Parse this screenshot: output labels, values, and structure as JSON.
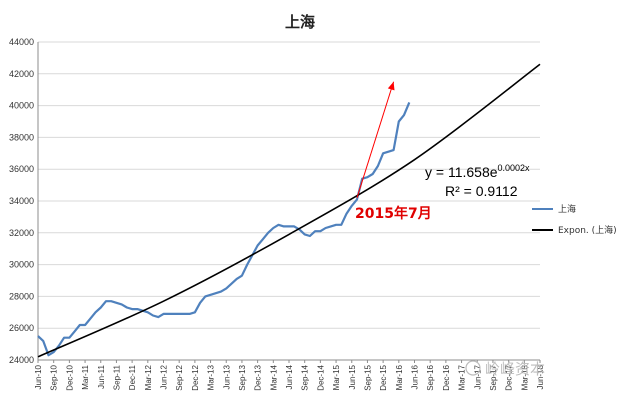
{
  "chart_data": {
    "type": "line",
    "title": "上海",
    "xlabel": "",
    "ylabel": "",
    "ylim": [
      24000,
      44000
    ],
    "yticks": [
      24000,
      26000,
      28000,
      30000,
      32000,
      34000,
      36000,
      38000,
      40000,
      42000,
      44000
    ],
    "ytick_labels": [
      "24000",
      "26000",
      "28000",
      "30000",
      "32000",
      "34000",
      "36000",
      "38000",
      "40000",
      "42000",
      "44000"
    ],
    "xtick_labels": [
      "Jun-10",
      "Sep-10",
      "Dec-10",
      "Mar-11",
      "Jun-11",
      "Sep-11",
      "Dec-11",
      "Mar-12",
      "Jun-12",
      "Sep-12",
      "Dec-12",
      "Mar-13",
      "Jun-13",
      "Sep-13",
      "Dec-13",
      "Mar-14",
      "Jun-14",
      "Sep-14",
      "Dec-14",
      "Mar-15",
      "Jun-15",
      "Sep-15",
      "Dec-15",
      "Mar-16",
      "Jun-16",
      "Sep-16",
      "Dec-16",
      "Mar-17",
      "Jun-17",
      "Sep-17",
      "Dec-17",
      "Mar-18",
      "Jun-18"
    ],
    "grid": "horizontal",
    "legend_position": "right",
    "series": [
      {
        "name": "上海",
        "color": "#4f81bd",
        "start_month_index": 0,
        "values": [
          25500,
          25200,
          24300,
          24500,
          24900,
          25400,
          25400,
          25800,
          26200,
          26200,
          26600,
          27000,
          27300,
          27700,
          27700,
          27600,
          27500,
          27300,
          27200,
          27200,
          27100,
          27000,
          26800,
          26700,
          26900,
          26900,
          26900,
          26900,
          26900,
          26900,
          27000,
          27600,
          28000,
          28100,
          28200,
          28300,
          28500,
          28800,
          29100,
          29300,
          30000,
          30600,
          31200,
          31600,
          32000,
          32300,
          32500,
          32400,
          32400,
          32400,
          32200,
          31900,
          31800,
          32100,
          32100,
          32300,
          32400,
          32500,
          32500,
          33200,
          33700,
          34100,
          35400,
          35500,
          35700,
          36200,
          37000,
          37100,
          37200,
          39000,
          39400,
          40200
        ]
      },
      {
        "name": "Expon. (上海)",
        "color": "#000000",
        "type": "trendline",
        "values_at_ticks": [
          {
            "x": "Jun-10",
            "y": 24200
          },
          {
            "x": "Jun-12",
            "y": 27700
          },
          {
            "x": "Jun-14",
            "y": 31900
          },
          {
            "x": "Jun-16",
            "y": 36600
          },
          {
            "x": "Jun-18",
            "y": 42600
          }
        ]
      }
    ],
    "annotations": {
      "equation": "y = 11.658e",
      "equation_exponent": "0.0002x",
      "r_squared": "R² = 0.9112",
      "arrow_label": "2015年7月",
      "arrow_color": "#ff0000",
      "label_color": "#ff0000",
      "arrow_from": {
        "x": "Jul-15",
        "y": 34200
      },
      "arrow_to": {
        "x": "Feb-16",
        "y": 41500
      }
    },
    "watermark": "岭峰资本"
  }
}
